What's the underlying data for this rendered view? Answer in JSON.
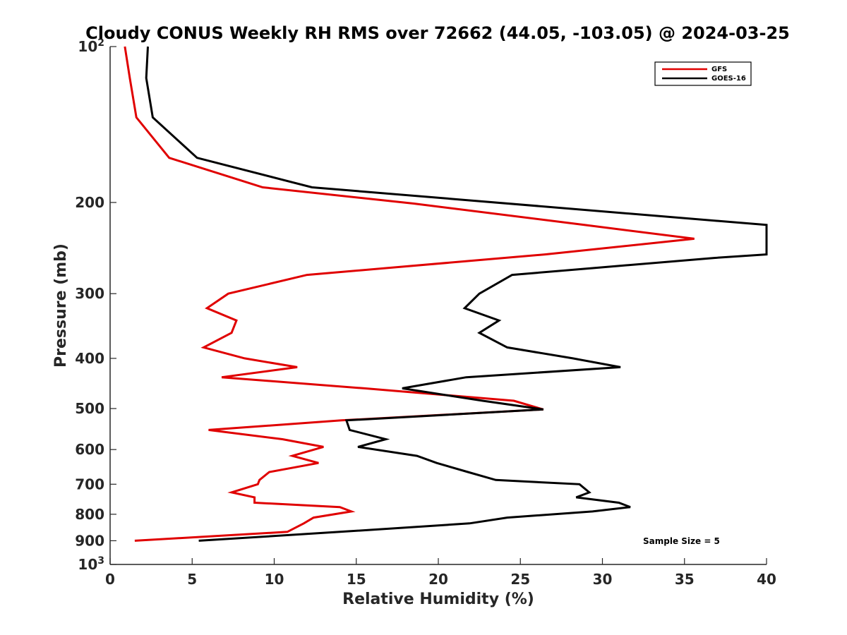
{
  "chart_data": {
    "type": "line",
    "title": "Cloudy CONUS Weekly RH RMS over 72662 (44.05, -103.05) @ 2024-03-25",
    "xlabel": "Relative Humidity (%)",
    "ylabel": "Pressure (mb)",
    "xlim": [
      0,
      40
    ],
    "ylim": [
      100,
      1000
    ],
    "yscale": "log",
    "y_reversed": true,
    "x_ticks": [
      "0",
      "5",
      "10",
      "15",
      "20",
      "25",
      "30",
      "35",
      "40"
    ],
    "y_ticks": [
      {
        "value": 100,
        "label": "10",
        "exp": "2"
      },
      {
        "value": 200,
        "label": "200"
      },
      {
        "value": 300,
        "label": "300"
      },
      {
        "value": 400,
        "label": "400"
      },
      {
        "value": 500,
        "label": "500"
      },
      {
        "value": 600,
        "label": "600"
      },
      {
        "value": 700,
        "label": "700"
      },
      {
        "value": 800,
        "label": "800"
      },
      {
        "value": 900,
        "label": "900"
      },
      {
        "value": 1000,
        "label": "10",
        "exp": "3"
      }
    ],
    "grid": false,
    "legend_position": "top-right",
    "annotation": "Sample Size = 5",
    "series": [
      {
        "name": "GFS",
        "color": "#e00000",
        "points": [
          [
            0.9,
            100
          ],
          [
            1.2,
            115
          ],
          [
            1.6,
            137
          ],
          [
            3.6,
            164
          ],
          [
            9.3,
            187
          ],
          [
            18.5,
            201
          ],
          [
            28.9,
            221
          ],
          [
            35.6,
            235
          ],
          [
            26.5,
            252
          ],
          [
            12.0,
            276
          ],
          [
            7.2,
            300
          ],
          [
            5.9,
            320
          ],
          [
            7.7,
            338
          ],
          [
            7.4,
            357
          ],
          [
            5.7,
            381
          ],
          [
            8.2,
            400
          ],
          [
            11.4,
            416
          ],
          [
            6.8,
            435
          ],
          [
            15.5,
            457
          ],
          [
            24.6,
            483
          ],
          [
            26.4,
            502
          ],
          [
            14.1,
            527
          ],
          [
            6.0,
            550
          ],
          [
            10.5,
            573
          ],
          [
            13.0,
            593
          ],
          [
            11.1,
            617
          ],
          [
            12.7,
            637
          ],
          [
            9.7,
            663
          ],
          [
            9.1,
            687
          ],
          [
            9.0,
            700
          ],
          [
            7.4,
            726
          ],
          [
            8.8,
            742
          ],
          [
            8.8,
            760
          ],
          [
            14.0,
            775
          ],
          [
            14.7,
            790
          ],
          [
            12.4,
            812
          ],
          [
            11.8,
            833
          ],
          [
            10.8,
            865
          ],
          [
            1.5,
            900
          ]
        ]
      },
      {
        "name": "GOES-16",
        "color": "#000000",
        "points": [
          [
            2.3,
            100
          ],
          [
            2.2,
            115
          ],
          [
            2.6,
            137
          ],
          [
            5.3,
            164
          ],
          [
            12.3,
            187
          ],
          [
            40.0,
            221
          ],
          [
            40.0,
            252
          ],
          [
            36.8,
            256
          ],
          [
            24.5,
            276
          ],
          [
            22.5,
            300
          ],
          [
            21.6,
            320
          ],
          [
            23.7,
            338
          ],
          [
            22.5,
            357
          ],
          [
            24.2,
            381
          ],
          [
            28.2,
            400
          ],
          [
            31.1,
            416
          ],
          [
            21.7,
            435
          ],
          [
            17.8,
            457
          ],
          [
            22.7,
            483
          ],
          [
            26.4,
            502
          ],
          [
            14.4,
            527
          ],
          [
            14.6,
            550
          ],
          [
            16.8,
            573
          ],
          [
            15.1,
            593
          ],
          [
            18.7,
            617
          ],
          [
            19.9,
            637
          ],
          [
            21.8,
            663
          ],
          [
            23.5,
            687
          ],
          [
            28.6,
            700
          ],
          [
            29.2,
            726
          ],
          [
            28.4,
            742
          ],
          [
            31.0,
            760
          ],
          [
            31.7,
            775
          ],
          [
            29.4,
            790
          ],
          [
            24.2,
            812
          ],
          [
            21.9,
            833
          ],
          [
            14.0,
            865
          ],
          [
            5.4,
            900
          ]
        ]
      }
    ]
  }
}
